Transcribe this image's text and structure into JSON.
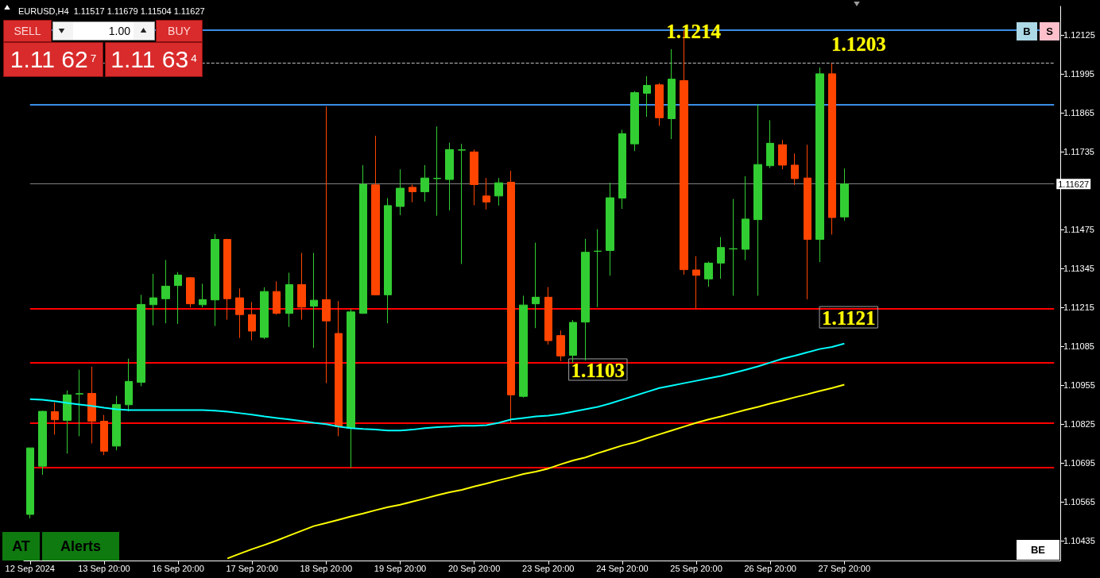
{
  "chart_data": {
    "type": "candlestick",
    "title": "EURUSD,H4  1.11517 1.11679 1.11504 1.11627",
    "categories": [
      "12 Sep 2024",
      null,
      null,
      null,
      null,
      null,
      "13 Sep 20:00",
      null,
      null,
      null,
      null,
      null,
      "16 Sep 20:00",
      null,
      null,
      null,
      null,
      null,
      "17 Sep 20:00",
      null,
      null,
      null,
      null,
      null,
      "18 Sep 20:00",
      null,
      null,
      null,
      null,
      null,
      "19 Sep 20:00",
      null,
      null,
      null,
      null,
      null,
      "20 Sep 20:00",
      null,
      null,
      null,
      null,
      null,
      "23 Sep 20:00",
      null,
      null,
      null,
      null,
      null,
      "24 Sep 20:00",
      null,
      null,
      null,
      null,
      null,
      "25 Sep 20:00",
      null,
      null,
      null,
      null,
      null,
      "26 Sep 20:00",
      null,
      null,
      null,
      null,
      null,
      "27 Sep 20:00",
      null,
      null,
      null,
      null,
      null,
      null,
      null,
      null,
      null,
      null,
      null,
      null,
      null,
      null,
      null,
      null,
      null
    ],
    "ohlc": [
      [
        1.10524,
        1.10746,
        1.10511,
        1.10746
      ],
      [
        1.10685,
        1.1087,
        1.10656,
        1.10868
      ],
      [
        1.10867,
        1.10898,
        1.1079,
        1.1084
      ],
      [
        1.10838,
        1.10938,
        1.10727,
        1.10923
      ],
      [
        1.10926,
        1.11007,
        1.10785,
        1.10927
      ],
      [
        1.10928,
        1.11017,
        1.10761,
        1.10835
      ],
      [
        1.10835,
        1.10856,
        1.10722,
        1.10735
      ],
      [
        1.10752,
        1.1092,
        1.10738,
        1.10891
      ],
      [
        1.1089,
        1.11044,
        1.10868,
        1.10968
      ],
      [
        1.10965,
        1.11257,
        1.10952,
        1.11225
      ],
      [
        1.11224,
        1.11327,
        1.11155,
        1.11247
      ],
      [
        1.11244,
        1.11373,
        1.11162,
        1.11286
      ],
      [
        1.11288,
        1.11333,
        1.1116,
        1.11323
      ],
      [
        1.11314,
        1.11316,
        1.11215,
        1.11227
      ],
      [
        1.11224,
        1.11294,
        1.11215,
        1.11241
      ],
      [
        1.1124,
        1.1146,
        1.11153,
        1.11442
      ],
      [
        1.11442,
        1.11444,
        1.11174,
        1.11244
      ],
      [
        1.11247,
        1.11278,
        1.11113,
        1.11191
      ],
      [
        1.11191,
        1.11233,
        1.11105,
        1.11136
      ],
      [
        1.11115,
        1.11282,
        1.11109,
        1.11268
      ],
      [
        1.11268,
        1.11302,
        1.11191,
        1.11195
      ],
      [
        1.11195,
        1.11331,
        1.1115,
        1.11291
      ],
      [
        1.11291,
        1.11397,
        1.11174,
        1.11216
      ],
      [
        1.11219,
        1.11397,
        1.1108,
        1.11239
      ],
      [
        1.11241,
        1.11886,
        1.10962,
        1.1117
      ],
      [
        1.11128,
        1.11236,
        1.10785,
        1.10817
      ],
      [
        1.10812,
        1.1121,
        1.1068,
        1.112
      ],
      [
        1.11195,
        1.1169,
        1.11194,
        1.11626
      ],
      [
        1.11624,
        1.11788,
        1.11256,
        1.11257
      ],
      [
        1.11257,
        1.1158,
        1.11162,
        1.11555
      ],
      [
        1.11552,
        1.11676,
        1.11523,
        1.11613
      ],
      [
        1.11616,
        1.11625,
        1.11566,
        1.11601
      ],
      [
        1.11601,
        1.1169,
        1.11568,
        1.11647
      ],
      [
        1.11645,
        1.11819,
        1.11521,
        1.11646
      ],
      [
        1.11642,
        1.11765,
        1.11539,
        1.11742
      ],
      [
        1.1174,
        1.11761,
        1.1136,
        1.11741
      ],
      [
        1.11734,
        1.11742,
        1.11556,
        1.11625
      ],
      [
        1.11587,
        1.11647,
        1.11542,
        1.11567
      ],
      [
        1.11587,
        1.11647,
        1.11555,
        1.11631
      ],
      [
        1.11633,
        1.11671,
        1.1083,
        1.10923
      ],
      [
        1.10918,
        1.11254,
        1.10914,
        1.11223
      ],
      [
        1.11227,
        1.11431,
        1.11146,
        1.11249
      ],
      [
        1.11249,
        1.11283,
        1.11091,
        1.11104
      ],
      [
        1.11121,
        1.11138,
        1.11036,
        1.11053
      ],
      [
        1.11055,
        1.11173,
        1.1103,
        1.11165
      ],
      [
        1.11166,
        1.11444,
        1.11038,
        1.11399
      ],
      [
        1.11402,
        1.11476,
        1.11216,
        1.11403
      ],
      [
        1.11405,
        1.11631,
        1.11321,
        1.11581
      ],
      [
        1.1158,
        1.11808,
        1.11544,
        1.11795
      ],
      [
        1.11761,
        1.11937,
        1.11737,
        1.11932
      ],
      [
        1.1193,
        1.11987,
        1.11851,
        1.11956
      ],
      [
        1.11958,
        1.11964,
        1.11821,
        1.11848
      ],
      [
        1.11845,
        1.12077,
        1.11777,
        1.11977
      ],
      [
        1.11972,
        1.1214,
        1.11324,
        1.11341
      ],
      [
        1.1134,
        1.11386,
        1.1121,
        1.11322
      ],
      [
        1.1131,
        1.11368,
        1.11284,
        1.11363
      ],
      [
        1.11363,
        1.1145,
        1.11311,
        1.11415
      ],
      [
        1.1141,
        1.11577,
        1.11254,
        1.11411
      ],
      [
        1.11409,
        1.11653,
        1.11373,
        1.1151
      ],
      [
        1.11508,
        1.11893,
        1.11254,
        1.11692
      ],
      [
        1.11688,
        1.1184,
        1.1168,
        1.11763
      ],
      [
        1.11758,
        1.11774,
        1.11676,
        1.1169
      ],
      [
        1.1169,
        1.11729,
        1.11624,
        1.11645
      ],
      [
        1.11647,
        1.11758,
        1.11242,
        1.11442
      ],
      [
        1.11442,
        1.12016,
        1.11366,
        1.11995
      ],
      [
        1.11995,
        1.1203,
        1.11458,
        1.11515
      ],
      [
        1.11517,
        1.11679,
        1.11504,
        1.11627
      ],
      null,
      null,
      null,
      null,
      null,
      null,
      null,
      null,
      null,
      null,
      null,
      null,
      null,
      null,
      null,
      null,
      null
    ],
    "colors": [
      "#32cd32",
      "#32cd32",
      "#ff4500",
      "#32cd32",
      "#32cd32",
      "#ff4500",
      "#ff4500",
      "#32cd32",
      "#32cd32",
      "#32cd32",
      "#32cd32",
      "#32cd32",
      "#32cd32",
      "#ff4500",
      "#32cd32",
      "#32cd32",
      "#ff4500",
      "#ff4500",
      "#ff4500",
      "#32cd32",
      "#ff4500",
      "#32cd32",
      "#ff4500",
      "#32cd32",
      "#ff4500",
      "#ff4500",
      "#32cd32",
      "#32cd32",
      "#ff4500",
      "#32cd32",
      "#32cd32",
      "#ff4500",
      "#32cd32",
      "#32cd32",
      "#32cd32",
      "#32cd32",
      "#ff4500",
      "#ff4500",
      "#32cd32",
      "#ff4500",
      "#32cd32",
      "#32cd32",
      "#ff4500",
      "#ff4500",
      "#32cd32",
      "#32cd32",
      "#32cd32",
      "#32cd32",
      "#32cd32",
      "#32cd32",
      "#32cd32",
      "#ff4500",
      "#32cd32",
      "#ff4500",
      "#ff4500",
      "#32cd32",
      "#32cd32",
      "#32cd32",
      "#32cd32",
      "#32cd32",
      "#32cd32",
      "#ff4500",
      "#ff4500",
      "#ff4500",
      "#32cd32",
      "#ff4500",
      "#32cd32",
      null,
      null,
      null,
      null,
      null,
      null,
      null,
      null,
      null,
      null,
      null,
      null,
      null,
      null,
      null,
      null,
      null
    ],
    "series": [
      {
        "type": "line",
        "color": "#00ffff",
        "values": [
          1.10909,
          1.10907,
          1.10902,
          1.10896,
          1.10891,
          1.10886,
          1.1088,
          1.10875,
          1.10872,
          1.10872,
          1.10872,
          1.10872,
          1.10872,
          1.10872,
          1.10872,
          1.1087,
          1.10867,
          1.10862,
          1.10857,
          1.10851,
          1.10846,
          1.10841,
          1.10836,
          1.1083,
          1.10825,
          1.10817,
          1.10812,
          1.10809,
          1.10807,
          1.10804,
          1.10804,
          1.10807,
          1.10812,
          1.10815,
          1.10817,
          1.1082,
          1.1082,
          1.10822,
          1.1083,
          1.10841,
          1.10846,
          1.10851,
          1.10854,
          1.10859,
          1.10867,
          1.10875,
          1.10883,
          1.10894,
          1.10907,
          1.1092,
          1.10933,
          1.10946,
          1.10954,
          1.10962,
          1.1097,
          1.10978,
          1.10986,
          1.10996,
          1.11007,
          1.11018,
          1.11031,
          1.11044,
          1.11054,
          1.11065,
          1.11076,
          1.11083,
          1.11094,
          null,
          null,
          null,
          null,
          null,
          null,
          null,
          null,
          null,
          null,
          null,
          null,
          null,
          null,
          null,
          null,
          null
        ]
      },
      {
        "type": "line",
        "color": "#ffff00",
        "values": [
          null,
          null,
          null,
          null,
          null,
          null,
          null,
          null,
          null,
          null,
          null,
          null,
          null,
          null,
          null,
          null,
          1.10377,
          1.10393,
          1.10408,
          1.10422,
          1.10437,
          1.10453,
          1.10469,
          1.10485,
          1.10495,
          1.10506,
          1.10517,
          1.10527,
          1.10538,
          1.10548,
          1.10556,
          1.10567,
          1.10577,
          1.10588,
          1.10598,
          1.10606,
          1.10617,
          1.10627,
          1.10638,
          1.10648,
          1.10659,
          1.10667,
          1.10677,
          1.10691,
          1.10704,
          1.10714,
          1.10728,
          1.10741,
          1.10754,
          1.10764,
          1.10778,
          1.10791,
          1.10804,
          1.10817,
          1.1083,
          1.10841,
          1.10851,
          1.10862,
          1.10873,
          1.10883,
          1.10894,
          1.10904,
          1.10915,
          1.10925,
          1.10936,
          1.10946,
          1.10957,
          null,
          null,
          null,
          null,
          null,
          null,
          null,
          null,
          null,
          null,
          null,
          null,
          null,
          null,
          null,
          null,
          null
        ]
      }
    ],
    "marker": "none",
    "ylim": [
      1.1037,
      1.1222
    ],
    "yticks": [
      1.12125,
      1.11995,
      1.11865,
      1.11735,
      1.11475,
      1.11345,
      1.11215,
      1.11085,
      1.10955,
      1.10825,
      1.10695,
      1.10565,
      1.10435
    ],
    "ref_lines": [
      {
        "axis": "y",
        "value": 1.1214,
        "label": "1.1214",
        "color": "#3a8ee6"
      },
      {
        "axis": "y",
        "value": 1.1203,
        "label": "1.1203",
        "color": "#c0c0c0",
        "line_style": "dashed"
      },
      {
        "axis": "y",
        "value": 1.11893,
        "color": "#3a8ee6"
      },
      {
        "axis": "y",
        "value": 1.1121,
        "label": "1.1121",
        "color": "#ff0000"
      },
      {
        "axis": "y",
        "value": 1.1103,
        "label": "1.1103",
        "color": "#ff0000"
      },
      {
        "axis": "y",
        "value": 1.1083,
        "color": "#ff0000"
      },
      {
        "axis": "y",
        "value": 1.1068,
        "color": "#ff0000"
      },
      {
        "axis": "y",
        "value": 1.11627,
        "label": "1.11627",
        "color": "#808080"
      }
    ],
    "annotations": [
      "SELL",
      "1.00",
      "BUY",
      "1.11 62$^{7}$",
      "1.11 63$^{4}$",
      "B",
      "S",
      "AT",
      "Alerts",
      "BE"
    ]
  }
}
